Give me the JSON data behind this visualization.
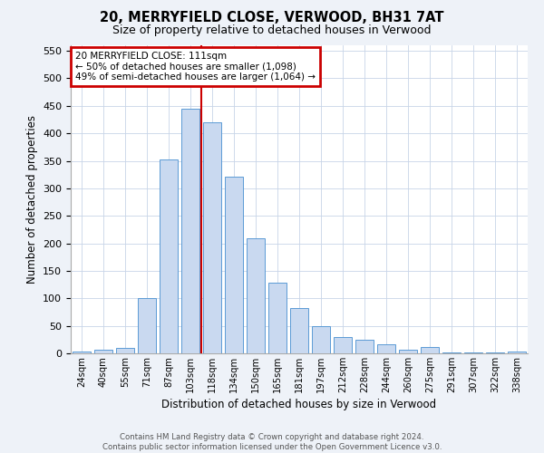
{
  "title1": "20, MERRYFIELD CLOSE, VERWOOD, BH31 7AT",
  "title2": "Size of property relative to detached houses in Verwood",
  "xlabel": "Distribution of detached houses by size in Verwood",
  "ylabel": "Number of detached properties",
  "categories": [
    "24sqm",
    "40sqm",
    "55sqm",
    "71sqm",
    "87sqm",
    "103sqm",
    "118sqm",
    "134sqm",
    "150sqm",
    "165sqm",
    "181sqm",
    "197sqm",
    "212sqm",
    "228sqm",
    "244sqm",
    "260sqm",
    "275sqm",
    "291sqm",
    "307sqm",
    "322sqm",
    "338sqm"
  ],
  "values": [
    3,
    7,
    10,
    100,
    353,
    445,
    420,
    322,
    210,
    128,
    83,
    49,
    29,
    24,
    17,
    7,
    11,
    2,
    1,
    1,
    3
  ],
  "bar_color": "#c9d9f0",
  "bar_edge_color": "#5b9bd5",
  "vline_idx": 6,
  "vline_color": "#cc0000",
  "annotation_text": "20 MERRYFIELD CLOSE: 111sqm\n← 50% of detached houses are smaller (1,098)\n49% of semi-detached houses are larger (1,064) →",
  "annotation_box_color": "#cc0000",
  "ylim": [
    0,
    560
  ],
  "yticks": [
    0,
    50,
    100,
    150,
    200,
    250,
    300,
    350,
    400,
    450,
    500,
    550
  ],
  "footer": "Contains HM Land Registry data © Crown copyright and database right 2024.\nContains public sector information licensed under the Open Government Licence v3.0.",
  "bg_color": "#eef2f8",
  "plot_bg_color": "#ffffff",
  "grid_color": "#c8d4e8"
}
